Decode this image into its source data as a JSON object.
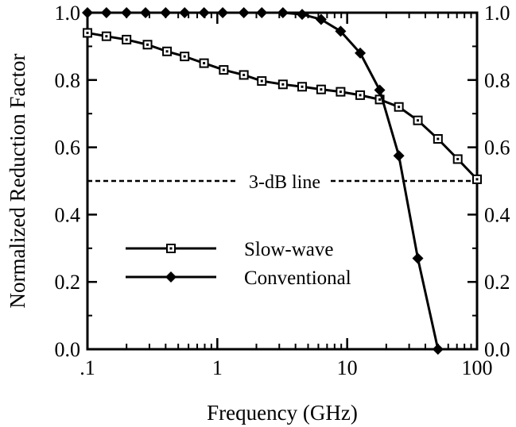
{
  "chart_data": {
    "type": "line",
    "xlabel": "Frequency (GHz)",
    "ylabel": "Normalized Reduction Factor",
    "x_scale": "log",
    "xlim": [
      0.1,
      100
    ],
    "ylim": [
      0.0,
      1.0
    ],
    "x_ticks": [
      {
        "value": 0.1,
        "label": ".1"
      },
      {
        "value": 1,
        "label": "1"
      },
      {
        "value": 10,
        "label": "10"
      },
      {
        "value": 100,
        "label": "100"
      }
    ],
    "y_ticks": [
      {
        "value": 0.0,
        "label": "0.0"
      },
      {
        "value": 0.2,
        "label": "0.2"
      },
      {
        "value": 0.4,
        "label": "0.4"
      },
      {
        "value": 0.6,
        "label": "0.6"
      },
      {
        "value": 0.8,
        "label": "0.8"
      },
      {
        "value": 1.0,
        "label": "1.0"
      }
    ],
    "grid": false,
    "legend_position": "bottom-left",
    "series": [
      {
        "name": "Slow-wave",
        "marker": "open-square",
        "color": "#000000",
        "points": [
          [
            0.1,
            0.94
          ],
          [
            0.14,
            0.93
          ],
          [
            0.2,
            0.92
          ],
          [
            0.29,
            0.905
          ],
          [
            0.41,
            0.885
          ],
          [
            0.56,
            0.87
          ],
          [
            0.79,
            0.85
          ],
          [
            1.12,
            0.83
          ],
          [
            1.6,
            0.815
          ],
          [
            2.2,
            0.797
          ],
          [
            3.2,
            0.787
          ],
          [
            4.5,
            0.78
          ],
          [
            6.3,
            0.772
          ],
          [
            8.9,
            0.765
          ],
          [
            12.6,
            0.755
          ],
          [
            17.8,
            0.742
          ],
          [
            25,
            0.72
          ],
          [
            35,
            0.68
          ],
          [
            50,
            0.625
          ],
          [
            71,
            0.565
          ],
          [
            100,
            0.505
          ]
        ]
      },
      {
        "name": "Conventional",
        "marker": "filled-diamond",
        "color": "#000000",
        "points": [
          [
            0.1,
            1.0
          ],
          [
            0.14,
            1.0
          ],
          [
            0.2,
            1.0
          ],
          [
            0.28,
            1.0
          ],
          [
            0.4,
            1.0
          ],
          [
            0.56,
            1.0
          ],
          [
            0.79,
            1.0
          ],
          [
            1.1,
            1.0
          ],
          [
            1.6,
            1.0
          ],
          [
            2.2,
            1.0
          ],
          [
            3.2,
            1.0
          ],
          [
            4.5,
            0.995
          ],
          [
            6.3,
            0.98
          ],
          [
            8.9,
            0.945
          ],
          [
            12.6,
            0.88
          ],
          [
            17.8,
            0.77
          ],
          [
            25,
            0.575
          ],
          [
            35,
            0.27
          ],
          [
            50,
            0.0
          ]
        ]
      }
    ],
    "annotations": [
      {
        "text": "3-dB line",
        "y": 0.5,
        "style": "dashed"
      }
    ]
  }
}
